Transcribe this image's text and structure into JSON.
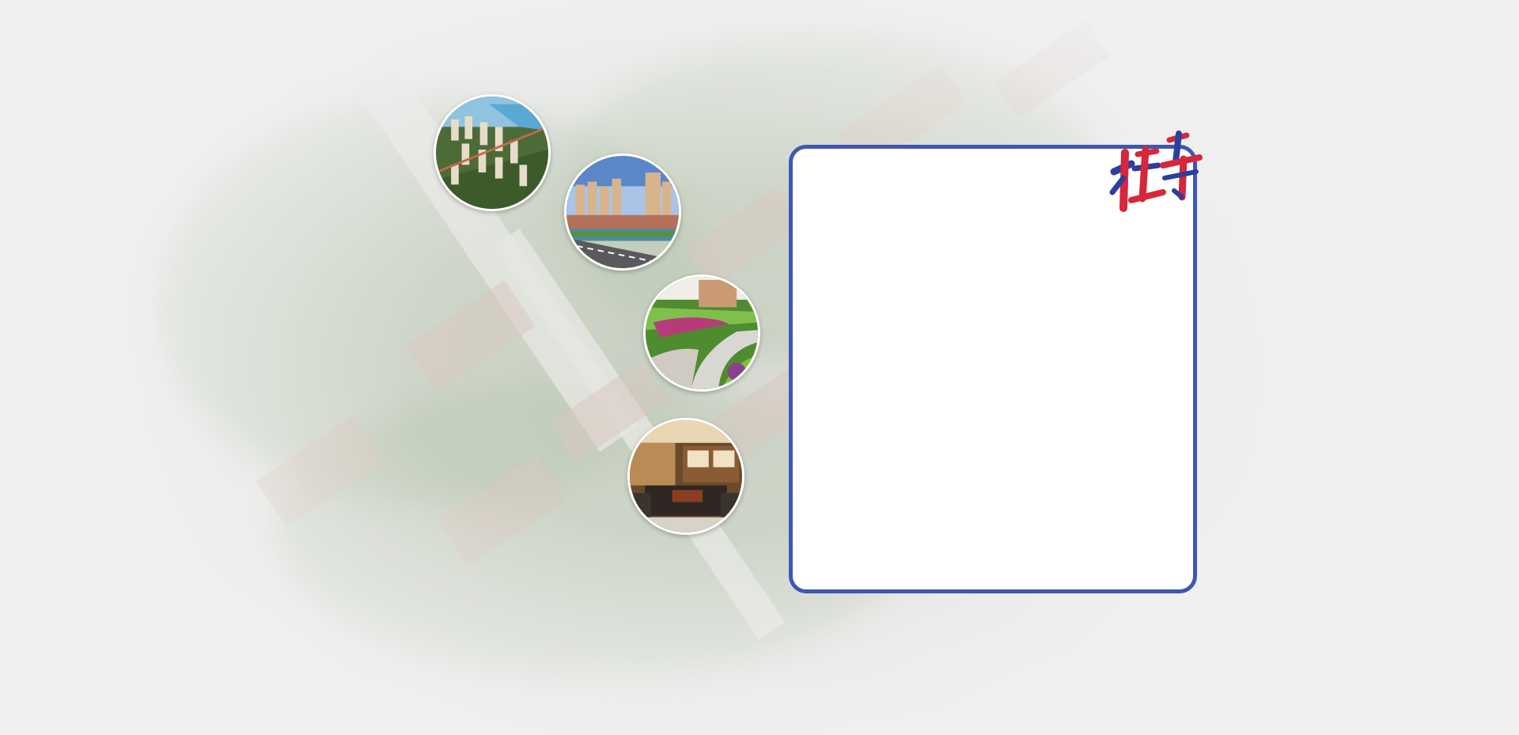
{
  "background": {
    "description_icon": "aerial-residential-icon"
  },
  "thumbnails": [
    {
      "icon": "aerial-towers-icon"
    },
    {
      "icon": "riverside-towers-icon"
    },
    {
      "icon": "garden-path-icon"
    },
    {
      "icon": "living-room-icon"
    }
  ],
  "panel": {
    "border_color": "#3f56b4",
    "fill": "#ffffff"
  },
  "stamp": {
    "icon": "calligraphy-stamp-icon",
    "colors": [
      "#d8263a",
      "#2d3f9c"
    ]
  }
}
